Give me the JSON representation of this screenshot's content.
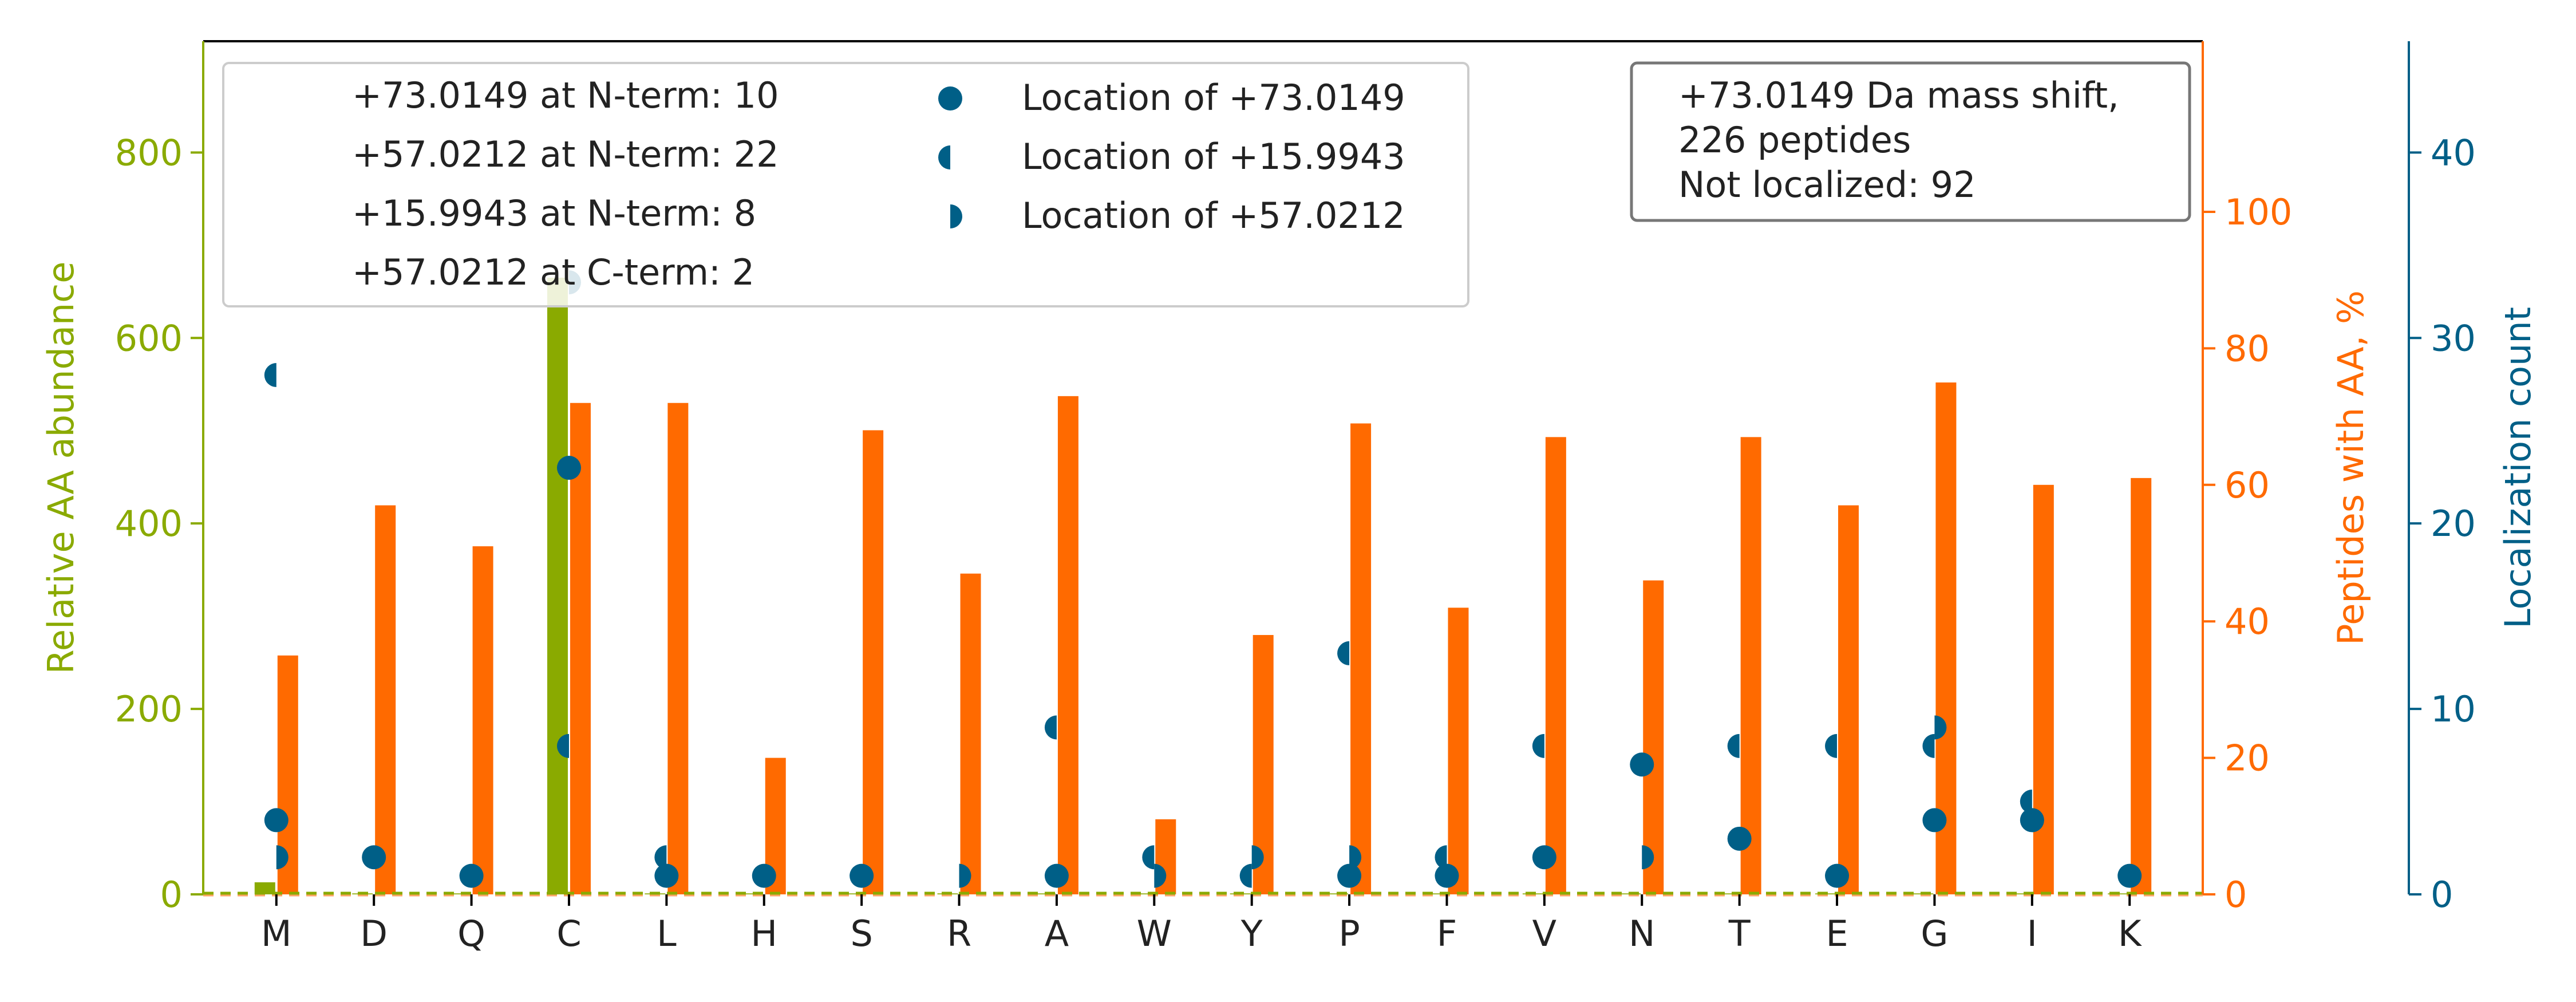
{
  "chart_data": {
    "type": "bar",
    "categories": [
      "M",
      "D",
      "Q",
      "C",
      "L",
      "H",
      "S",
      "R",
      "A",
      "W",
      "Y",
      "P",
      "F",
      "V",
      "N",
      "T",
      "E",
      "G",
      "I",
      "K"
    ],
    "axes": {
      "left": {
        "label": "Relative AA abundance",
        "range": [
          0,
          920
        ],
        "ticks": [
          0,
          200,
          400,
          600,
          800
        ],
        "color": "#8aaa00"
      },
      "right1": {
        "label": "Peptides with AA, %",
        "range": [
          0,
          125
        ],
        "ticks": [
          0,
          20,
          40,
          60,
          80,
          100
        ],
        "color": "#ff6a00"
      },
      "right2": {
        "label": "Localization count",
        "range": [
          0,
          46
        ],
        "ticks": [
          0,
          10,
          20,
          30,
          40
        ],
        "color": "#005f87"
      }
    },
    "series": [
      {
        "name": "Relative AA abundance",
        "axis": "left",
        "kind": "bar",
        "color": "#8aaa00",
        "values": [
          13,
          1,
          1,
          665,
          1,
          1,
          1,
          1,
          1,
          1,
          1,
          1,
          1,
          1,
          1,
          1,
          1,
          1,
          1,
          1
        ]
      },
      {
        "name": "Peptides with AA, %",
        "axis": "right1",
        "kind": "bar",
        "color": "#ff6a00",
        "values": [
          35,
          57,
          51,
          72,
          72,
          20,
          68,
          47,
          73,
          11,
          38,
          69,
          42,
          67,
          46,
          67,
          57,
          75,
          60,
          61
        ]
      },
      {
        "name": "Location of +73.0149",
        "axis": "right2",
        "kind": "marker",
        "marker": "full",
        "color": "#005f87",
        "values": [
          4,
          2,
          1,
          23,
          1,
          1,
          1,
          null,
          1,
          null,
          null,
          1,
          1,
          2,
          7,
          3,
          1,
          4,
          4,
          1
        ]
      },
      {
        "name": "Location of +15.9943",
        "axis": "right2",
        "kind": "marker",
        "marker": "left",
        "color": "#005f87",
        "values": [
          28,
          null,
          null,
          8,
          2,
          null,
          null,
          null,
          9,
          2,
          1,
          13,
          2,
          8,
          null,
          8,
          8,
          8,
          5,
          null
        ]
      },
      {
        "name": "Location of +57.0212",
        "axis": "right2",
        "kind": "marker",
        "marker": "right",
        "color": "#005f87",
        "values": [
          2,
          null,
          null,
          33,
          null,
          null,
          null,
          1,
          null,
          1,
          2,
          2,
          null,
          null,
          2,
          null,
          null,
          9,
          4,
          null
        ]
      }
    ],
    "legend": {
      "placement": "top-left",
      "terms": [
        "+73.0149 at N-term: 10",
        "+57.0212 at N-term: 22",
        "+15.9943 at N-term: 8",
        "+57.0212 at C-term: 2"
      ],
      "markers": [
        "Location of +73.0149",
        "Location of +15.9943",
        "Location of +57.0212"
      ]
    },
    "annotation": {
      "lines": [
        "+73.0149 Da mass shift,",
        "226 peptides",
        "Not localized: 92"
      ],
      "placement": "top-right"
    }
  }
}
